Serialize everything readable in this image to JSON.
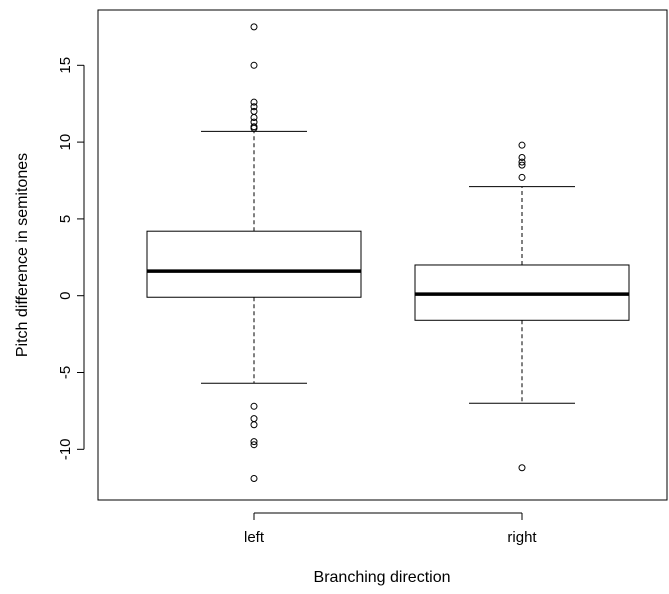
{
  "chart_data": {
    "type": "boxplot",
    "title": "",
    "xlabel": "Branching direction",
    "ylabel": "Pitch difference in semitones",
    "categories": [
      "left",
      "right"
    ],
    "ylim": [
      -13.3,
      18.6
    ],
    "yticks": [
      -10,
      -5,
      0,
      5,
      10,
      15
    ],
    "ytick_labels": [
      "-10",
      "-5",
      "0",
      "5",
      "10",
      "15"
    ],
    "grid": false,
    "boxes": [
      {
        "name": "left",
        "whisker_low": -5.7,
        "q1": -0.1,
        "median": 1.6,
        "q3": 4.2,
        "whisker_high": 10.7,
        "outliers": [
          17.5,
          15.0,
          12.6,
          12.3,
          12.0,
          11.6,
          11.3,
          11.0,
          10.9,
          -7.2,
          -8.0,
          -8.4,
          -9.5,
          -9.7,
          -11.9
        ]
      },
      {
        "name": "right",
        "whisker_low": -7.0,
        "q1": -1.6,
        "median": 0.1,
        "q3": 2.0,
        "whisker_high": 7.1,
        "outliers": [
          9.8,
          9.0,
          8.7,
          8.5,
          7.7,
          -11.2
        ]
      }
    ]
  }
}
